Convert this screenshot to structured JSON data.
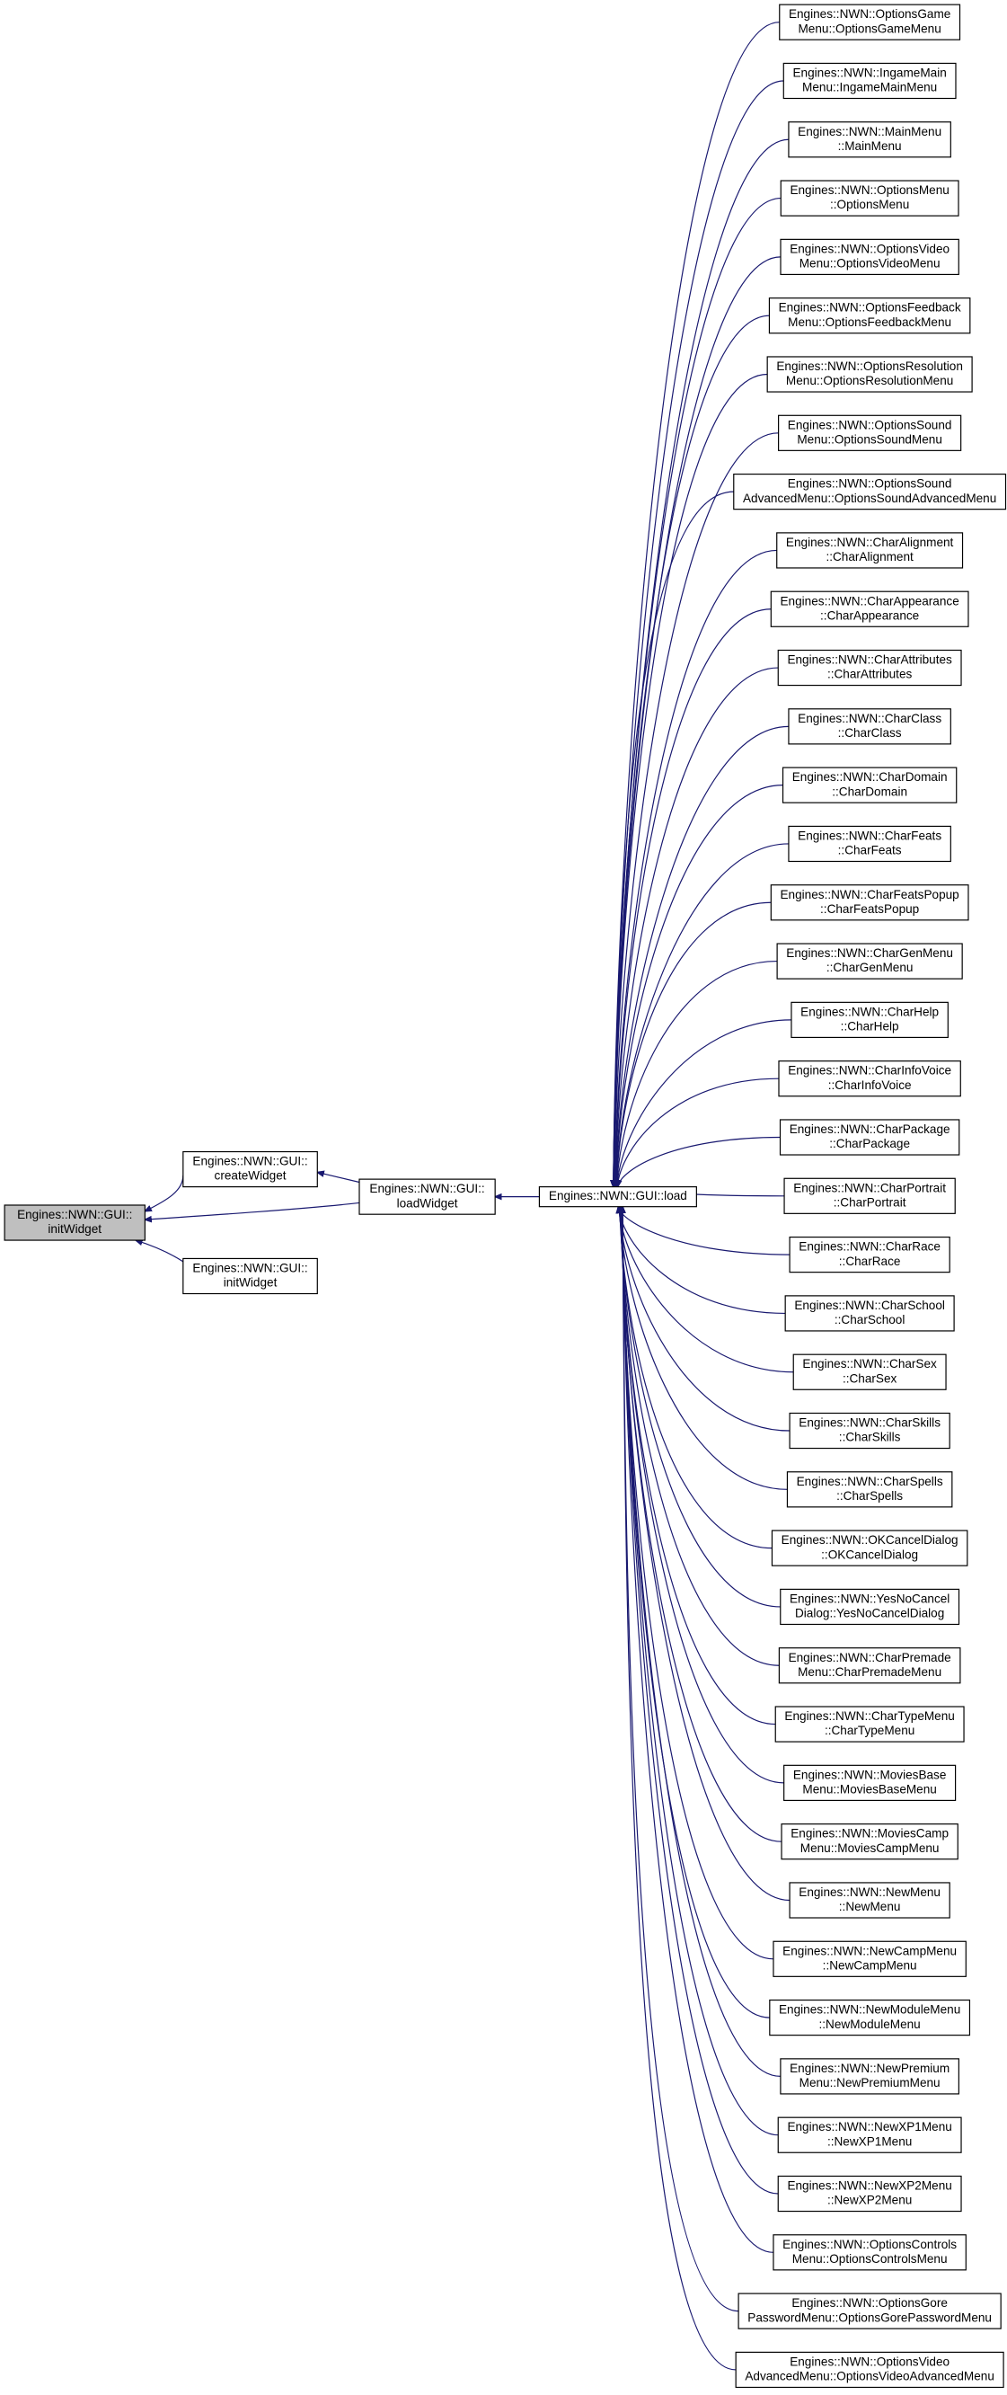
{
  "nodes": [
    {
      "lines": [
        "Engines::NWN::GUI::",
        "initWidget"
      ]
    },
    {
      "lines": [
        "Engines::NWN::GUI::",
        "createWidget"
      ]
    },
    {
      "lines": [
        "Engines::NWN::GUI::",
        "initWidget"
      ]
    },
    {
      "lines": [
        "Engines::NWN::GUI::",
        "loadWidget"
      ]
    },
    {
      "lines": [
        "Engines::NWN::GUI::load"
      ]
    }
  ],
  "callers": [
    {
      "lines": [
        "Engines::NWN::OptionsGame",
        "Menu::OptionsGameMenu"
      ]
    },
    {
      "lines": [
        "Engines::NWN::IngameMain",
        "Menu::IngameMainMenu"
      ]
    },
    {
      "lines": [
        "Engines::NWN::MainMenu",
        "::MainMenu"
      ]
    },
    {
      "lines": [
        "Engines::NWN::OptionsMenu",
        "::OptionsMenu"
      ]
    },
    {
      "lines": [
        "Engines::NWN::OptionsVideo",
        "Menu::OptionsVideoMenu"
      ]
    },
    {
      "lines": [
        "Engines::NWN::OptionsFeedback",
        "Menu::OptionsFeedbackMenu"
      ]
    },
    {
      "lines": [
        "Engines::NWN::OptionsResolution",
        "Menu::OptionsResolutionMenu"
      ]
    },
    {
      "lines": [
        "Engines::NWN::OptionsSound",
        "Menu::OptionsSoundMenu"
      ]
    },
    {
      "lines": [
        "Engines::NWN::OptionsSound",
        "AdvancedMenu::OptionsSoundAdvancedMenu"
      ]
    },
    {
      "lines": [
        "Engines::NWN::CharAlignment",
        "::CharAlignment"
      ]
    },
    {
      "lines": [
        "Engines::NWN::CharAppearance",
        "::CharAppearance"
      ]
    },
    {
      "lines": [
        "Engines::NWN::CharAttributes",
        "::CharAttributes"
      ]
    },
    {
      "lines": [
        "Engines::NWN::CharClass",
        "::CharClass"
      ]
    },
    {
      "lines": [
        "Engines::NWN::CharDomain",
        "::CharDomain"
      ]
    },
    {
      "lines": [
        "Engines::NWN::CharFeats",
        "::CharFeats"
      ]
    },
    {
      "lines": [
        "Engines::NWN::CharFeatsPopup",
        "::CharFeatsPopup"
      ]
    },
    {
      "lines": [
        "Engines::NWN::CharGenMenu",
        "::CharGenMenu"
      ]
    },
    {
      "lines": [
        "Engines::NWN::CharHelp",
        "::CharHelp"
      ]
    },
    {
      "lines": [
        "Engines::NWN::CharInfoVoice",
        "::CharInfoVoice"
      ]
    },
    {
      "lines": [
        "Engines::NWN::CharPackage",
        "::CharPackage"
      ]
    },
    {
      "lines": [
        "Engines::NWN::CharPortrait",
        "::CharPortrait"
      ]
    },
    {
      "lines": [
        "Engines::NWN::CharRace",
        "::CharRace"
      ]
    },
    {
      "lines": [
        "Engines::NWN::CharSchool",
        "::CharSchool"
      ]
    },
    {
      "lines": [
        "Engines::NWN::CharSex",
        "::CharSex"
      ]
    },
    {
      "lines": [
        "Engines::NWN::CharSkills",
        "::CharSkills"
      ]
    },
    {
      "lines": [
        "Engines::NWN::CharSpells",
        "::CharSpells"
      ]
    },
    {
      "lines": [
        "Engines::NWN::OKCancelDialog",
        "::OKCancelDialog"
      ]
    },
    {
      "lines": [
        "Engines::NWN::YesNoCancel",
        "Dialog::YesNoCancelDialog"
      ]
    },
    {
      "lines": [
        "Engines::NWN::CharPremade",
        "Menu::CharPremadeMenu"
      ]
    },
    {
      "lines": [
        "Engines::NWN::CharTypeMenu",
        "::CharTypeMenu"
      ]
    },
    {
      "lines": [
        "Engines::NWN::MoviesBase",
        "Menu::MoviesBaseMenu"
      ]
    },
    {
      "lines": [
        "Engines::NWN::MoviesCamp",
        "Menu::MoviesCampMenu"
      ]
    },
    {
      "lines": [
        "Engines::NWN::NewMenu",
        "::NewMenu"
      ]
    },
    {
      "lines": [
        "Engines::NWN::NewCampMenu",
        "::NewCampMenu"
      ]
    },
    {
      "lines": [
        "Engines::NWN::NewModuleMenu",
        "::NewModuleMenu"
      ]
    },
    {
      "lines": [
        "Engines::NWN::NewPremium",
        "Menu::NewPremiumMenu"
      ]
    },
    {
      "lines": [
        "Engines::NWN::NewXP1Menu",
        "::NewXP1Menu"
      ]
    },
    {
      "lines": [
        "Engines::NWN::NewXP2Menu",
        "::NewXP2Menu"
      ]
    },
    {
      "lines": [
        "Engines::NWN::OptionsControls",
        "Menu::OptionsControlsMenu"
      ]
    },
    {
      "lines": [
        "Engines::NWN::OptionsGore",
        "PasswordMenu::OptionsGorePasswordMenu"
      ]
    },
    {
      "lines": [
        "Engines::NWN::OptionsVideo",
        "AdvancedMenu::OptionsVideoAdvancedMenu"
      ]
    }
  ]
}
